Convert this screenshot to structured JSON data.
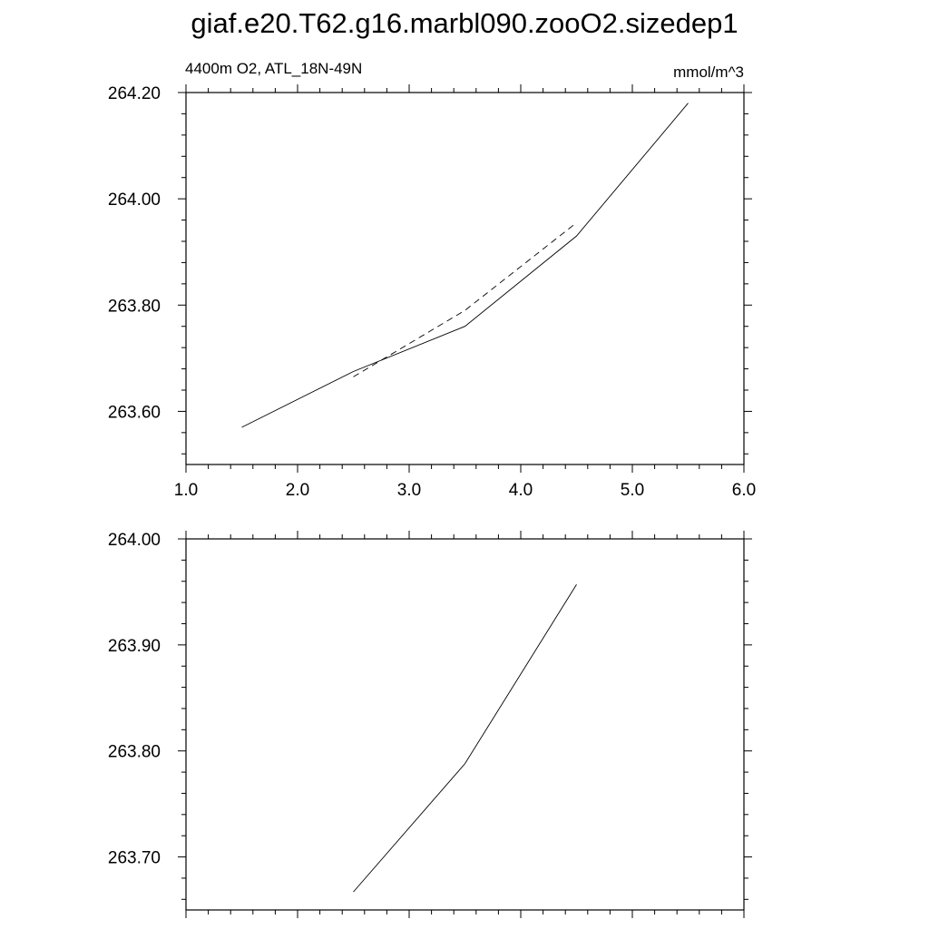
{
  "title": "giaf.e20.T62.g16.marbl090.zooO2.sizedep1",
  "subtitle_left": "4400m O2, ATL_18N-49N",
  "subtitle_right": "mmol/m^3",
  "chart_data": [
    {
      "type": "line",
      "xlim": [
        1.0,
        6.0
      ],
      "ylim": [
        263.5,
        264.2
      ],
      "x_ticks": [
        "1.0",
        "2.0",
        "3.0",
        "4.0",
        "5.0",
        "6.0"
      ],
      "y_ticks": [
        "263.60",
        "263.80",
        "264.00",
        "264.20"
      ],
      "series": [
        {
          "style": "solid",
          "x": [
            1.5,
            2.5,
            3.5,
            4.5,
            5.5
          ],
          "y": [
            263.57,
            263.675,
            263.76,
            263.93,
            264.18
          ]
        },
        {
          "style": "dashed",
          "x": [
            2.5,
            3.5,
            4.5
          ],
          "y": [
            263.665,
            263.79,
            263.955
          ]
        }
      ]
    },
    {
      "type": "line",
      "xlim": [
        1.0,
        6.0
      ],
      "ylim": [
        263.65,
        264.0
      ],
      "y_ticks": [
        "263.70",
        "263.80",
        "263.90",
        "264.00"
      ],
      "series": [
        {
          "style": "solid",
          "x": [
            2.5,
            3.5,
            4.5
          ],
          "y": [
            263.667,
            263.788,
            263.957
          ]
        }
      ]
    }
  ]
}
